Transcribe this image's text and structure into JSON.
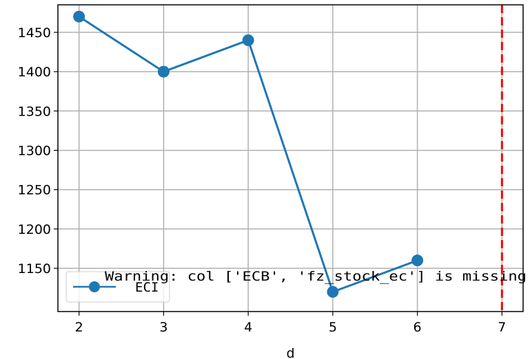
{
  "chart_data": {
    "type": "line",
    "x": [
      2,
      3,
      4,
      5,
      6
    ],
    "series": [
      {
        "name": "ECI",
        "values": [
          1470,
          1400,
          1440,
          1120,
          1160
        ],
        "color": "#1f77b4",
        "marker": "circle"
      }
    ],
    "xlabel": "d",
    "ylabel": "",
    "title": "",
    "xlim": [
      1.75,
      7.25
    ],
    "ylim": [
      1095,
      1485
    ],
    "xticks": [
      "2",
      "3",
      "4",
      "5",
      "6",
      "7"
    ],
    "yticks": [
      "1150",
      "1200",
      "1250",
      "1300",
      "1350",
      "1400",
      "1450"
    ],
    "grid": true,
    "legend_position": "lower-left",
    "vline": {
      "x": 7,
      "color": "#ff0000",
      "style": "dashed"
    },
    "annotation": "Warning: col ['ECB', 'fz_stock_ec'] is missing"
  }
}
